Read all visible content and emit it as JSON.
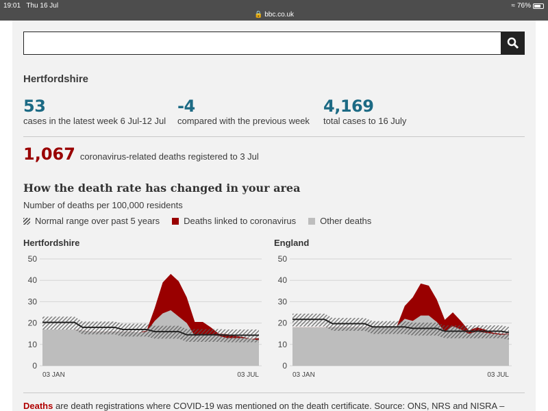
{
  "statusbar": {
    "time": "19:01",
    "date": "Thu 16 Jul",
    "url": "bbc.co.uk",
    "battery": "76%",
    "battery_level": 0.76
  },
  "search": {
    "value": "",
    "placeholder": ""
  },
  "area": {
    "name": "Hertfordshire"
  },
  "stats": [
    {
      "value": "53",
      "label": "cases in the latest week 6 Jul-12 Jul"
    },
    {
      "value": "-4",
      "label": "compared with the previous week"
    },
    {
      "value": "4,169",
      "label": "total cases to 16 July"
    }
  ],
  "deaths": {
    "value": "1,067",
    "label": "coronavirus-related deaths registered to 3 Jul"
  },
  "section": {
    "title": "How the death rate has changed in your area",
    "subtitle": "Number of deaths per 100,000 residents"
  },
  "legend": {
    "range": "Normal range over past 5 years",
    "covid": "Deaths linked to coronavirus",
    "other": "Other deaths"
  },
  "colors": {
    "teal": "#1c6a84",
    "covid": "#990000",
    "other": "#bdbdbd",
    "line": "#222222"
  },
  "footer": {
    "bold": "Deaths",
    "text": " are death registrations where COVID-19 was mentioned on the death certificate. Source: ONS, NRS and NISRA –"
  },
  "chart_data": [
    {
      "type": "area",
      "title": "Hertfordshire",
      "ylim": [
        0,
        50
      ],
      "yticks": [
        "0",
        "10",
        "20",
        "30",
        "40",
        "50"
      ],
      "xlabels": [
        "03 JAN",
        "03 JUL"
      ],
      "other": [
        17,
        17,
        17,
        17,
        17,
        16.5,
        16,
        16,
        16,
        16,
        16,
        16,
        15.5,
        16,
        21,
        24.5,
        26,
        23,
        20,
        14,
        14.5,
        14.5,
        14,
        13,
        13,
        13,
        12.5,
        12
      ],
      "total": [
        17,
        17,
        17,
        17,
        17,
        16.5,
        16,
        16,
        16,
        16,
        16,
        16,
        15.5,
        16.5,
        27,
        39,
        43,
        39.5,
        32,
        20.5,
        20.5,
        18,
        15,
        14.8,
        14,
        13.5,
        12.5,
        13
      ],
      "average": [
        20.3,
        20.3,
        20.3,
        20.3,
        20.3,
        18,
        18,
        18,
        18,
        18,
        17,
        17,
        17,
        17,
        16,
        16,
        16,
        16,
        14.5,
        14.5,
        14.5,
        14.5,
        14.5,
        14.3,
        14.3,
        14.3,
        14.3,
        14.3
      ]
    },
    {
      "type": "area",
      "title": "England",
      "ylim": [
        0,
        50
      ],
      "yticks": [
        "0",
        "10",
        "20",
        "30",
        "40",
        "50"
      ],
      "xlabels": [
        "03 JAN",
        "03 JUL"
      ],
      "other": [
        18,
        18,
        18,
        18,
        18,
        18,
        18,
        18,
        18,
        18,
        18,
        18,
        18,
        18.3,
        22,
        21,
        23.5,
        23.5,
        20.5,
        16,
        18.5,
        17,
        15,
        16,
        15.5,
        15,
        14.5,
        14.8
      ],
      "total": [
        18,
        18,
        18,
        18,
        18,
        18,
        18,
        18,
        18,
        18,
        18,
        18,
        18,
        18.3,
        28,
        32,
        38.5,
        37.5,
        31,
        21.5,
        25,
        21,
        16.5,
        18,
        17,
        15.5,
        15,
        15
      ],
      "average": [
        21.7,
        21.7,
        21.7,
        21.7,
        21.7,
        19.7,
        19.7,
        19.7,
        19.7,
        19.7,
        18.2,
        18.2,
        18.2,
        18.2,
        18.2,
        17.5,
        17.5,
        17.5,
        17.5,
        16.2,
        16.2,
        16.2,
        16.2,
        16.2,
        16.2,
        16.2,
        16.2,
        15.5
      ]
    }
  ]
}
